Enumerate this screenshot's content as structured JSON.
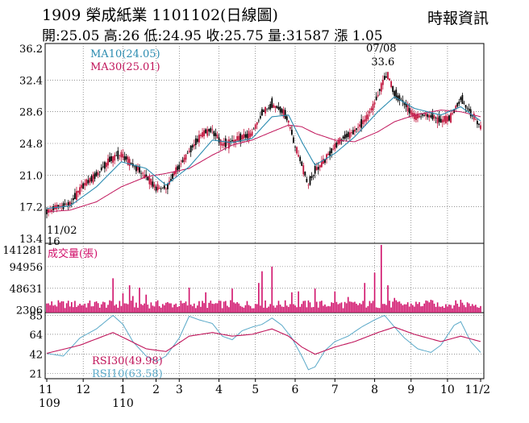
{
  "header": {
    "title": "1909  榮成紙業 1101102(日線圖)",
    "source": "時報資訊",
    "quote": "開:25.05 高:26 低:24.95 收:25.75 量:31587 漲 1.05"
  },
  "colors": {
    "candle_up": "#c0143c",
    "candle_down": "#000000",
    "ma10": "#2a8bb0",
    "ma30": "#c0145a",
    "volume": "#d0106a",
    "rsi30": "#c0145a",
    "rsi10": "#5aa9c8",
    "grid": "#555555"
  },
  "chart_data": [
    {
      "type": "candlestick",
      "title": "",
      "ylim": [
        13.4,
        36.2
      ],
      "yticks": [
        "36.2",
        "32.4",
        "28.6",
        "24.8",
        "21.0",
        "17.2",
        "13.4"
      ],
      "legend": [
        {
          "name": "MA10(24.05)",
          "color": "#2a8bb0"
        },
        {
          "name": "MA30(25.01)",
          "color": "#c0145a"
        }
      ],
      "annotations": [
        {
          "text": "07/08",
          "date": "07/08"
        },
        {
          "text": "33.6",
          "date": "07/08",
          "value": 33.6
        },
        {
          "text": "11/02",
          "date": "11/02"
        },
        {
          "text": "16",
          "date": "11/02",
          "value": 16
        }
      ],
      "close_path": [
        [
          0,
          16.6
        ],
        [
          6,
          17.2
        ],
        [
          14,
          17.5
        ],
        [
          22,
          19.8
        ],
        [
          30,
          21.0
        ],
        [
          38,
          22.8
        ],
        [
          45,
          23.5
        ],
        [
          52,
          22.2
        ],
        [
          60,
          20.8
        ],
        [
          66,
          19.5
        ],
        [
          72,
          19.4
        ],
        [
          78,
          21.5
        ],
        [
          86,
          23.8
        ],
        [
          94,
          26.0
        ],
        [
          100,
          26.4
        ],
        [
          106,
          24.6
        ],
        [
          112,
          25.0
        ],
        [
          118,
          25.5
        ],
        [
          124,
          26.0
        ],
        [
          130,
          28.5
        ],
        [
          136,
          29.5
        ],
        [
          142,
          28.8
        ],
        [
          146,
          27.5
        ],
        [
          150,
          24.5
        ],
        [
          154,
          22.4
        ],
        [
          158,
          19.8
        ],
        [
          162,
          21.5
        ],
        [
          168,
          22.8
        ],
        [
          174,
          24.5
        ],
        [
          180,
          25.6
        ],
        [
          186,
          26.2
        ],
        [
          194,
          28.0
        ],
        [
          200,
          30.5
        ],
        [
          204,
          32.8
        ],
        [
          206,
          33.0
        ],
        [
          210,
          30.8
        ],
        [
          216,
          29.5
        ],
        [
          222,
          28.0
        ],
        [
          230,
          28.2
        ],
        [
          238,
          27.5
        ],
        [
          244,
          28.0
        ],
        [
          250,
          30.2
        ],
        [
          256,
          28.5
        ],
        [
          262,
          26.8
        ],
        [
          268,
          25.8
        ],
        [
          274,
          25.5
        ],
        [
          280,
          28.5
        ],
        [
          286,
          27.0
        ],
        [
          292,
          24.8
        ],
        [
          298,
          23.5
        ],
        [
          304,
          23.2
        ],
        [
          310,
          23.6
        ],
        [
          316,
          24.2
        ],
        [
          322,
          25.75
        ]
      ],
      "ma10_path": [
        [
          0,
          17.0
        ],
        [
          14,
          17.3
        ],
        [
          30,
          19.6
        ],
        [
          45,
          22.6
        ],
        [
          60,
          21.8
        ],
        [
          72,
          19.8
        ],
        [
          86,
          22.0
        ],
        [
          100,
          25.2
        ],
        [
          112,
          24.9
        ],
        [
          124,
          25.4
        ],
        [
          136,
          28.0
        ],
        [
          146,
          28.2
        ],
        [
          154,
          25.0
        ],
        [
          162,
          22.2
        ],
        [
          174,
          23.6
        ],
        [
          186,
          25.6
        ],
        [
          200,
          28.6
        ],
        [
          210,
          30.4
        ],
        [
          222,
          29.0
        ],
        [
          238,
          28.2
        ],
        [
          250,
          29.2
        ],
        [
          262,
          27.5
        ],
        [
          274,
          26.2
        ],
        [
          286,
          26.8
        ],
        [
          298,
          24.8
        ],
        [
          310,
          23.6
        ],
        [
          322,
          24.05
        ]
      ],
      "ma30_path": [
        [
          0,
          16.6
        ],
        [
          14,
          16.8
        ],
        [
          30,
          17.8
        ],
        [
          45,
          19.6
        ],
        [
          60,
          20.8
        ],
        [
          72,
          21.2
        ],
        [
          86,
          21.8
        ],
        [
          100,
          23.4
        ],
        [
          112,
          24.6
        ],
        [
          124,
          25.2
        ],
        [
          136,
          26.2
        ],
        [
          146,
          27.0
        ],
        [
          154,
          26.8
        ],
        [
          162,
          26.0
        ],
        [
          174,
          25.2
        ],
        [
          186,
          25.0
        ],
        [
          200,
          26.2
        ],
        [
          210,
          27.4
        ],
        [
          222,
          28.2
        ],
        [
          238,
          28.8
        ],
        [
          250,
          28.6
        ],
        [
          262,
          28.0
        ],
        [
          274,
          27.2
        ],
        [
          286,
          26.6
        ],
        [
          298,
          26.0
        ],
        [
          310,
          25.4
        ],
        [
          322,
          25.01
        ]
      ]
    },
    {
      "type": "bar",
      "title": "成交量(張)",
      "ylim": [
        0,
        141281
      ],
      "yticks": [
        "141281",
        "94956",
        "48631",
        "2306"
      ],
      "spikes": [
        [
          40,
          70000
        ],
        [
          46,
          38000
        ],
        [
          50,
          55000
        ],
        [
          52,
          32000
        ],
        [
          56,
          50000
        ],
        [
          60,
          35000
        ],
        [
          86,
          50000
        ],
        [
          96,
          40000
        ],
        [
          112,
          48000
        ],
        [
          128,
          60000
        ],
        [
          130,
          85000
        ],
        [
          136,
          95000
        ],
        [
          148,
          40000
        ],
        [
          152,
          42000
        ],
        [
          162,
          48000
        ],
        [
          174,
          42000
        ],
        [
          182,
          30000
        ],
        [
          192,
          60000
        ],
        [
          198,
          82000
        ],
        [
          202,
          141281
        ],
        [
          206,
          55000
        ],
        [
          210,
          28000
        ],
        [
          232,
          24000
        ],
        [
          250,
          24000
        ],
        [
          268,
          36000
        ],
        [
          280,
          62000
        ],
        [
          286,
          38000
        ],
        [
          322,
          31587
        ]
      ],
      "base_level": 16000
    },
    {
      "type": "line",
      "title": "",
      "ylim": [
        15,
        88
      ],
      "yticks": [
        "85",
        "64",
        "42",
        "21"
      ],
      "series": [
        {
          "name": "RSI30(49.98)",
          "values": [
            [
              0,
              43
            ],
            [
              20,
              52
            ],
            [
              40,
              66
            ],
            [
              60,
              48
            ],
            [
              72,
              45
            ],
            [
              86,
              62
            ],
            [
              100,
              66
            ],
            [
              112,
              62
            ],
            [
              124,
              64
            ],
            [
              136,
              70
            ],
            [
              146,
              62
            ],
            [
              154,
              50
            ],
            [
              162,
              42
            ],
            [
              174,
              50
            ],
            [
              186,
              56
            ],
            [
              200,
              66
            ],
            [
              210,
              72
            ],
            [
              222,
              64
            ],
            [
              238,
              56
            ],
            [
              250,
              62
            ],
            [
              262,
              56
            ],
            [
              274,
              50
            ],
            [
              286,
              56
            ],
            [
              298,
              46
            ],
            [
              310,
              44
            ],
            [
              322,
              49.98
            ]
          ]
        },
        {
          "name": "RSI10(63.58)",
          "values": [
            [
              0,
              43
            ],
            [
              10,
              40
            ],
            [
              20,
              60
            ],
            [
              30,
              70
            ],
            [
              40,
              85
            ],
            [
              46,
              75
            ],
            [
              52,
              56
            ],
            [
              60,
              40
            ],
            [
              66,
              34
            ],
            [
              72,
              40
            ],
            [
              80,
              60
            ],
            [
              86,
              84
            ],
            [
              92,
              80
            ],
            [
              100,
              76
            ],
            [
              106,
              62
            ],
            [
              112,
              58
            ],
            [
              118,
              68
            ],
            [
              124,
              72
            ],
            [
              130,
              75
            ],
            [
              136,
              82
            ],
            [
              142,
              74
            ],
            [
              148,
              60
            ],
            [
              154,
              40
            ],
            [
              158,
              25
            ],
            [
              162,
              28
            ],
            [
              168,
              46
            ],
            [
              174,
              56
            ],
            [
              182,
              62
            ],
            [
              190,
              72
            ],
            [
              198,
              80
            ],
            [
              204,
              85
            ],
            [
              210,
              72
            ],
            [
              216,
              60
            ],
            [
              224,
              48
            ],
            [
              232,
              44
            ],
            [
              238,
              52
            ],
            [
              246,
              74
            ],
            [
              250,
              78
            ],
            [
              256,
              56
            ],
            [
              262,
              44
            ],
            [
              268,
              38
            ],
            [
              274,
              60
            ],
            [
              280,
              75
            ],
            [
              286,
              52
            ],
            [
              292,
              34
            ],
            [
              298,
              30
            ],
            [
              304,
              40
            ],
            [
              310,
              36
            ],
            [
              316,
              46
            ],
            [
              322,
              63.58
            ]
          ]
        }
      ]
    }
  ],
  "x_axis": {
    "month_labels": [
      {
        "text": "11",
        "i": 0
      },
      {
        "text": "12",
        "i": 22
      },
      {
        "text": "1",
        "i": 46
      },
      {
        "text": "2",
        "i": 66
      },
      {
        "text": "3",
        "i": 80
      },
      {
        "text": "4",
        "i": 104
      },
      {
        "text": "5",
        "i": 126
      },
      {
        "text": "6",
        "i": 150
      },
      {
        "text": "7",
        "i": 174
      },
      {
        "text": "8",
        "i": 198
      },
      {
        "text": "9",
        "i": 220
      },
      {
        "text": "10",
        "i": 242
      },
      {
        "text": "11/2",
        "i": 262
      }
    ],
    "year_labels": [
      {
        "text": "109",
        "i": 0
      },
      {
        "text": "110",
        "i": 46
      }
    ],
    "n_days": 263
  }
}
